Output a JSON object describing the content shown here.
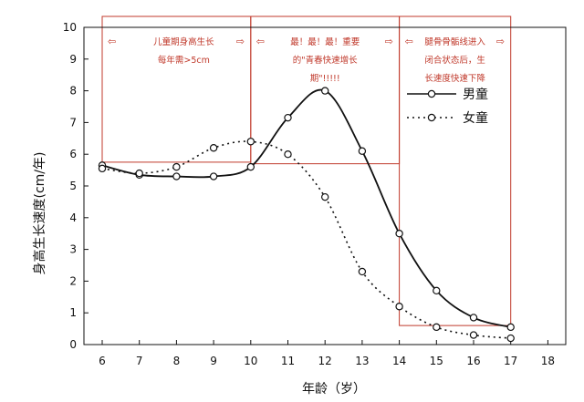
{
  "chart_data": {
    "type": "line",
    "xlabel": "年龄（岁）",
    "ylabel": "身高生长速度(cm/年)",
    "xlim": [
      5.5,
      18.2
    ],
    "ylim": [
      0,
      10
    ],
    "x_ticks": [
      "6",
      "7",
      "8",
      "9",
      "10",
      "11",
      "12",
      "13",
      "14",
      "15",
      "16",
      "17",
      "18"
    ],
    "y_ticks": [
      "0",
      "1",
      "2",
      "3",
      "4",
      "5",
      "6",
      "7",
      "8",
      "9",
      "10"
    ],
    "legend_position": "right",
    "series": [
      {
        "name": "男童",
        "line_style": "solid",
        "x": [
          6,
          7,
          8,
          9,
          10,
          11,
          12,
          13,
          14,
          15,
          16,
          17
        ],
        "values": [
          5.65,
          5.35,
          5.3,
          5.3,
          5.6,
          7.15,
          8.0,
          6.1,
          3.5,
          1.7,
          0.85,
          0.55
        ]
      },
      {
        "name": "女童",
        "line_style": "dotted",
        "x": [
          6,
          7,
          8,
          9,
          10,
          11,
          12,
          13,
          14,
          15,
          16,
          17
        ],
        "values": [
          5.55,
          5.4,
          5.6,
          6.2,
          6.4,
          6.0,
          4.65,
          2.3,
          1.2,
          0.55,
          0.3,
          0.2
        ]
      }
    ],
    "annotations": [
      {
        "x_range": [
          6,
          10
        ],
        "lines": [
          "儿童期身高生长",
          "每年需>5cm"
        ]
      },
      {
        "x_range": [
          10,
          14
        ],
        "lines": [
          "最！最！最！重要",
          "的\"青春快速增长",
          "期\"!!!!!"
        ]
      },
      {
        "x_range": [
          14,
          17
        ],
        "lines": [
          "腿骨骨骺线进入",
          "闭合状态后，生",
          "长速度快速下降"
        ]
      }
    ],
    "colors": {
      "boy": "#111111",
      "girl": "#111111",
      "annotation": "#c0392b"
    }
  }
}
